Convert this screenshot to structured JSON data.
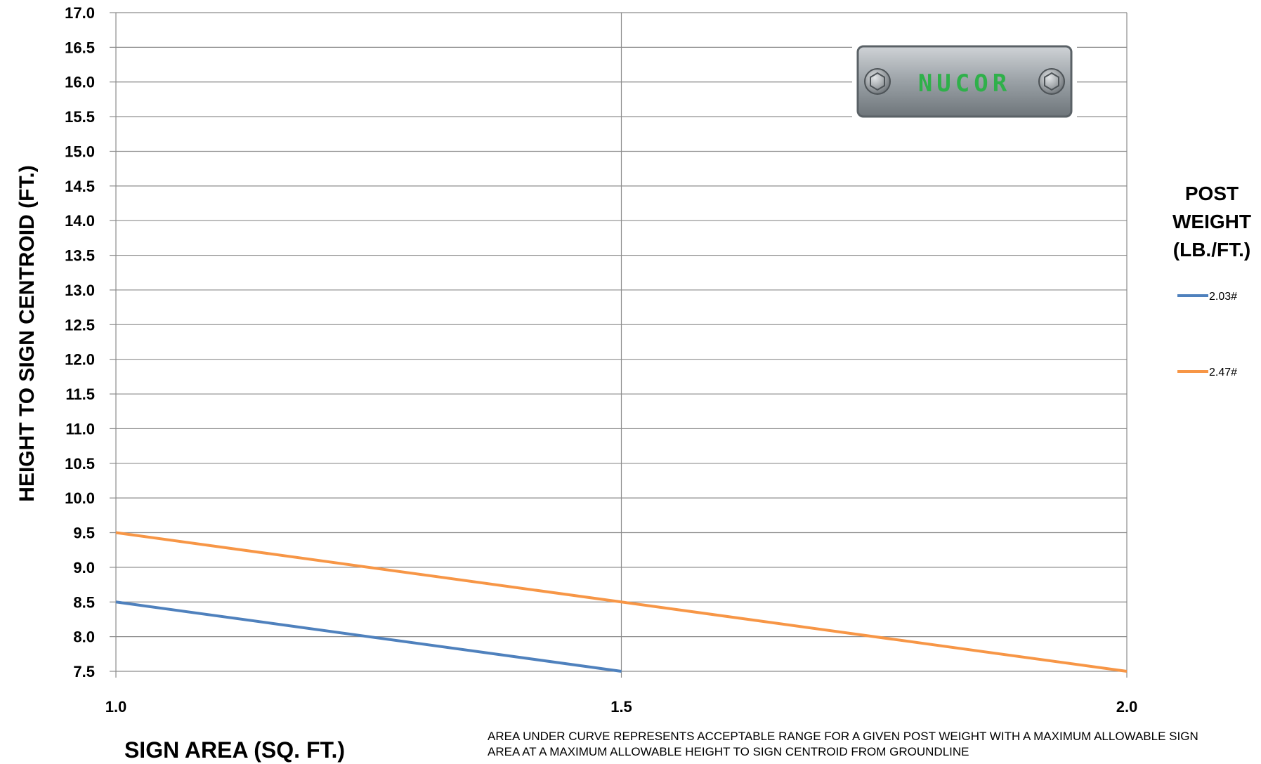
{
  "chart_data": {
    "type": "line",
    "title": "",
    "xlabel": "SIGN AREA (SQ. FT.)",
    "ylabel": "HEIGHT TO SIGN CENTROID (FT.)",
    "xlim": [
      1.0,
      2.0
    ],
    "ylim": [
      7.5,
      17.0
    ],
    "x_ticks": [
      "1.0",
      "1.5",
      "2.0"
    ],
    "y_ticks": [
      "7.5",
      "8.0",
      "8.5",
      "9.0",
      "9.5",
      "10.0",
      "10.5",
      "11.0",
      "11.5",
      "12.0",
      "12.5",
      "13.0",
      "13.5",
      "14.0",
      "14.5",
      "15.0",
      "15.5",
      "16.0",
      "16.5",
      "17.0"
    ],
    "grid": true,
    "legend": {
      "title_lines": [
        "POST",
        "WEIGHT",
        "(LB./FT.)"
      ],
      "placement": "right"
    },
    "series": [
      {
        "name": "2.03#",
        "color": "#4F81BD",
        "x": [
          1.0,
          1.5
        ],
        "y": [
          8.5,
          7.5
        ]
      },
      {
        "name": "2.47#",
        "color": "#F79646",
        "x": [
          1.0,
          1.5,
          2.0
        ],
        "y": [
          9.5,
          8.5,
          7.5
        ]
      }
    ],
    "annotation": "AREA UNDER CURVE REPRESENTS ACCEPTABLE RANGE FOR  A GIVEN POST WEIGHT  WITH  A MAXIMUM ALLOWABLE SIGN AREA AT A MAXIMUM ALLOWABLE HEIGHT TO SIGN  CENTROID FROM GROUNDLINE"
  },
  "logo": {
    "text": "NUCOR",
    "text_color": "#2FB04A"
  }
}
